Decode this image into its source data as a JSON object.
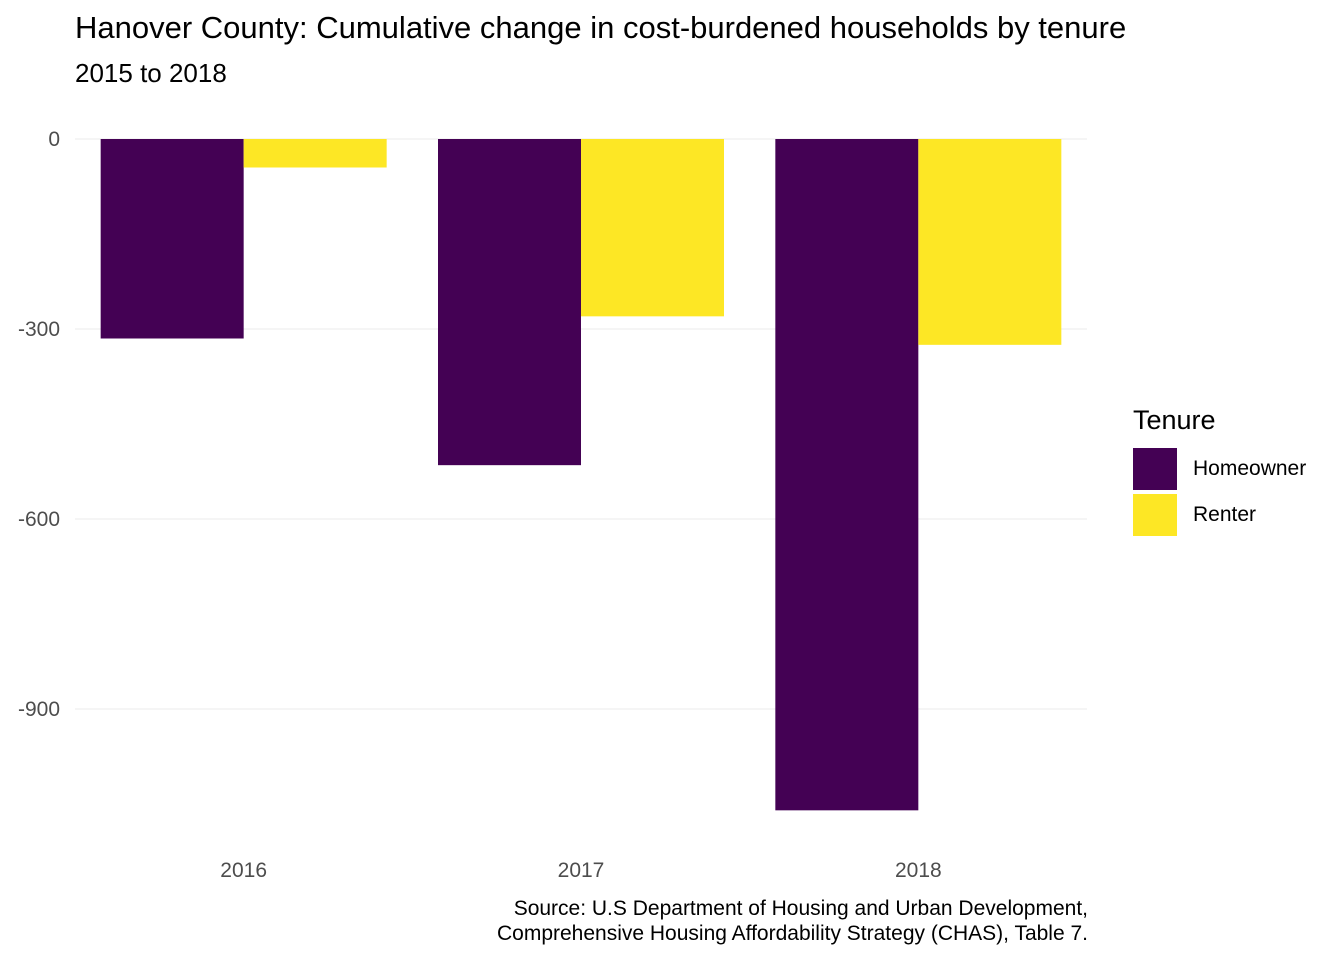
{
  "chart_data": {
    "type": "bar",
    "title": "Hanover County: Cumulative change in cost-burdened households by tenure",
    "subtitle": "2015 to 2018",
    "categories": [
      "2016",
      "2017",
      "2018"
    ],
    "series": [
      {
        "name": "Homeowner",
        "color": "#440154",
        "values": [
          -315,
          -515,
          -1060
        ]
      },
      {
        "name": "Renter",
        "color": "#FDE725",
        "values": [
          -45,
          -280,
          -325
        ]
      }
    ],
    "yticks": [
      0,
      -300,
      -600,
      -900
    ],
    "ytick_labels": [
      "0",
      "-300",
      "-600",
      "-900"
    ],
    "ylim": [
      -1060,
      0
    ],
    "grid": true,
    "legend": {
      "title": "Tenure",
      "placement": "right"
    },
    "caption": [
      "Source: U.S Department of Housing and Urban Development,",
      "Comprehensive Housing Affordability Strategy (CHAS), Table 7."
    ]
  }
}
